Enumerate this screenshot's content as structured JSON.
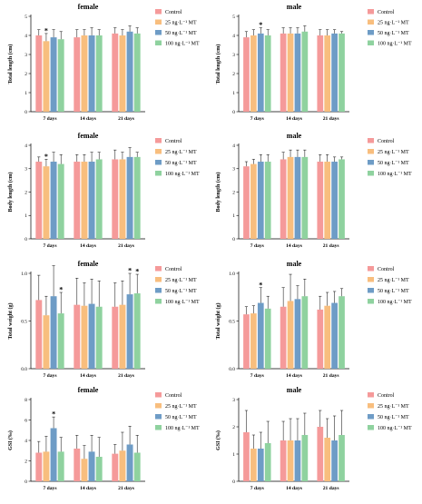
{
  "colors": {
    "Control": "#F59A9A",
    "25 ng·L⁻¹ MT": "#F8BE7E",
    "50 ng·L⁻¹ MT": "#6E9CC6",
    "100 ng·L⁻¹ MT": "#8FD29F",
    "axis": "#000000",
    "error_bar": "#000000"
  },
  "legend_labels": [
    "Control",
    "25 ng·L⁻¹ MT",
    "50 ng·L⁻¹ MT",
    "100 ng·L⁻¹ MT"
  ],
  "chart_data": [
    {
      "type": "bar",
      "title": "female",
      "ylabel": "Total length (cm)",
      "categories": [
        "7 days",
        "14 days",
        "21 days"
      ],
      "ylim": [
        0,
        5
      ],
      "yticks": [
        0,
        1,
        2,
        3,
        4,
        5
      ],
      "series": [
        {
          "name": "Control",
          "values": [
            4.0,
            3.9,
            4.1
          ],
          "errors": [
            0.3,
            0.4,
            0.3
          ]
        },
        {
          "name": "25 ng·L⁻¹ MT",
          "values": [
            3.7,
            4.0,
            4.0
          ],
          "errors": [
            0.4,
            0.3,
            0.3
          ]
        },
        {
          "name": "50 ng·L⁻¹ MT",
          "values": [
            3.9,
            4.0,
            4.2
          ],
          "errors": [
            0.4,
            0.4,
            0.3
          ]
        },
        {
          "name": "100 ng·L⁻¹ MT",
          "values": [
            3.8,
            4.0,
            4.1
          ],
          "errors": [
            0.4,
            0.3,
            0.3
          ]
        }
      ],
      "significance": [
        {
          "category": "7 days",
          "series": "25 ng·L⁻¹ MT",
          "label": "*"
        }
      ],
      "grid": false,
      "legend": "right"
    },
    {
      "type": "bar",
      "title": "male",
      "ylabel": "Total length (cm)",
      "categories": [
        "7 days",
        "14 days",
        "21 days"
      ],
      "ylim": [
        0,
        5
      ],
      "yticks": [
        0,
        1,
        2,
        3,
        4,
        5
      ],
      "series": [
        {
          "name": "Control",
          "values": [
            3.9,
            4.1,
            4.0
          ],
          "errors": [
            0.3,
            0.3,
            0.3
          ]
        },
        {
          "name": "25 ng·L⁻¹ MT",
          "values": [
            4.0,
            4.1,
            4.0
          ],
          "errors": [
            0.3,
            0.3,
            0.3
          ]
        },
        {
          "name": "50 ng·L⁻¹ MT",
          "values": [
            4.1,
            4.1,
            4.1
          ],
          "errors": [
            0.3,
            0.3,
            0.2
          ]
        },
        {
          "name": "100 ng·L⁻¹ MT",
          "values": [
            4.0,
            4.2,
            4.1
          ],
          "errors": [
            0.3,
            0.3,
            0.1
          ]
        }
      ],
      "significance": [
        {
          "category": "7 days",
          "series": "50 ng·L⁻¹ MT",
          "label": "*"
        }
      ],
      "grid": false,
      "legend": "right"
    },
    {
      "type": "bar",
      "title": "female",
      "ylabel": "Body length (cm)",
      "categories": [
        "7 days",
        "14 days",
        "21 days"
      ],
      "ylim": [
        0,
        4
      ],
      "yticks": [
        0,
        1,
        2,
        3,
        4
      ],
      "series": [
        {
          "name": "Control",
          "values": [
            3.3,
            3.3,
            3.4
          ],
          "errors": [
            0.2,
            0.3,
            0.4
          ]
        },
        {
          "name": "25 ng·L⁻¹ MT",
          "values": [
            3.1,
            3.3,
            3.4
          ],
          "errors": [
            0.3,
            0.3,
            0.3
          ]
        },
        {
          "name": "50 ng·L⁻¹ MT",
          "values": [
            3.3,
            3.3,
            3.5
          ],
          "errors": [
            0.4,
            0.4,
            0.4
          ]
        },
        {
          "name": "100 ng·L⁻¹ MT",
          "values": [
            3.2,
            3.4,
            3.5
          ],
          "errors": [
            0.4,
            0.3,
            0.2
          ]
        }
      ],
      "significance": [
        {
          "category": "7 days",
          "series": "25 ng·L⁻¹ MT",
          "label": "*"
        }
      ],
      "grid": false,
      "legend": "right"
    },
    {
      "type": "bar",
      "title": "male",
      "ylabel": "Body length (cm)",
      "categories": [
        "7 days",
        "14 days",
        "21 days"
      ],
      "ylim": [
        0,
        4
      ],
      "yticks": [
        0,
        1,
        2,
        3,
        4
      ],
      "series": [
        {
          "name": "Control",
          "values": [
            3.1,
            3.4,
            3.3
          ],
          "errors": [
            0.2,
            0.3,
            0.3
          ]
        },
        {
          "name": "25 ng·L⁻¹ MT",
          "values": [
            3.2,
            3.5,
            3.3
          ],
          "errors": [
            0.2,
            0.3,
            0.3
          ]
        },
        {
          "name": "50 ng·L⁻¹ MT",
          "values": [
            3.3,
            3.5,
            3.3
          ],
          "errors": [
            0.3,
            0.3,
            0.2
          ]
        },
        {
          "name": "100 ng·L⁻¹ MT",
          "values": [
            3.3,
            3.5,
            3.4
          ],
          "errors": [
            0.3,
            0.3,
            0.1
          ]
        }
      ],
      "significance": [],
      "grid": false,
      "legend": "right"
    },
    {
      "type": "bar",
      "title": "female",
      "ylabel": "Total weight (g)",
      "categories": [
        "7 days",
        "14 days",
        "21 days"
      ],
      "ylim": [
        0,
        1.0
      ],
      "yticks": [
        0.0,
        0.5,
        1.0
      ],
      "series": [
        {
          "name": "Control",
          "values": [
            0.72,
            0.67,
            0.65
          ],
          "errors": [
            0.26,
            0.28,
            0.25
          ]
        },
        {
          "name": "25 ng·L⁻¹ MT",
          "values": [
            0.56,
            0.66,
            0.67
          ],
          "errors": [
            0.2,
            0.24,
            0.25
          ]
        },
        {
          "name": "50 ng·L⁻¹ MT",
          "values": [
            0.76,
            0.68,
            0.78
          ],
          "errors": [
            0.38,
            0.26,
            0.22
          ]
        },
        {
          "name": "100 ng·L⁻¹ MT",
          "values": [
            0.58,
            0.65,
            0.79
          ],
          "errors": [
            0.22,
            0.27,
            0.2
          ]
        }
      ],
      "significance": [
        {
          "category": "7 days",
          "series": "100 ng·L⁻¹ MT",
          "label": "*"
        },
        {
          "category": "21 days",
          "series": "50 ng·L⁻¹ MT",
          "label": "*"
        },
        {
          "category": "21 days",
          "series": "100 ng·L⁻¹ MT",
          "label": "*"
        }
      ],
      "grid": false,
      "legend": "right"
    },
    {
      "type": "bar",
      "title": "male",
      "ylabel": "Total weight (g)",
      "categories": [
        "7 days",
        "14 days",
        "21 days"
      ],
      "ylim": [
        0,
        1.0
      ],
      "yticks": [
        0.0,
        0.5,
        1.0
      ],
      "series": [
        {
          "name": "Control",
          "values": [
            0.57,
            0.65,
            0.62
          ],
          "errors": [
            0.08,
            0.2,
            0.14
          ]
        },
        {
          "name": "25 ng·L⁻¹ MT",
          "values": [
            0.58,
            0.71,
            0.66
          ],
          "errors": [
            0.08,
            0.28,
            0.14
          ]
        },
        {
          "name": "50 ng·L⁻¹ MT",
          "values": [
            0.69,
            0.73,
            0.69
          ],
          "errors": [
            0.16,
            0.14,
            0.12
          ]
        },
        {
          "name": "100 ng·L⁻¹ MT",
          "values": [
            0.63,
            0.76,
            0.76
          ],
          "errors": [
            0.13,
            0.18,
            0.08
          ]
        }
      ],
      "significance": [
        {
          "category": "7 days",
          "series": "50 ng·L⁻¹ MT",
          "label": "*"
        }
      ],
      "grid": false,
      "legend": "right"
    },
    {
      "type": "bar",
      "title": "female",
      "ylabel": "GSI (‰)",
      "categories": [
        "7 days",
        "14 days",
        "21 days"
      ],
      "ylim": [
        0,
        8
      ],
      "yticks": [
        0,
        2,
        4,
        6,
        8
      ],
      "series": [
        {
          "name": "Control",
          "values": [
            2.8,
            3.2,
            2.7
          ],
          "errors": [
            1.1,
            1.3,
            0.9
          ]
        },
        {
          "name": "25 ng·L⁻¹ MT",
          "values": [
            2.9,
            2.2,
            3.0
          ],
          "errors": [
            1.5,
            1.3,
            1.8
          ]
        },
        {
          "name": "50 ng·L⁻¹ MT",
          "values": [
            5.2,
            2.9,
            3.6
          ],
          "errors": [
            1.1,
            1.6,
            1.8
          ]
        },
        {
          "name": "100 ng·L⁻¹ MT",
          "values": [
            2.9,
            2.4,
            2.8
          ],
          "errors": [
            1.4,
            1.9,
            1.7
          ]
        }
      ],
      "significance": [
        {
          "category": "7 days",
          "series": "50 ng·L⁻¹ MT",
          "label": "*"
        }
      ],
      "grid": false,
      "legend": "right"
    },
    {
      "type": "bar",
      "title": "male",
      "ylabel": "GSI (‰)",
      "categories": [
        "7 days",
        "14 days",
        "21 days"
      ],
      "ylim": [
        0,
        3
      ],
      "yticks": [
        0,
        1,
        2,
        3
      ],
      "series": [
        {
          "name": "Control",
          "values": [
            1.8,
            1.5,
            2.0
          ],
          "errors": [
            0.8,
            0.7,
            0.6
          ]
        },
        {
          "name": "25 ng·L⁻¹ MT",
          "values": [
            1.2,
            1.5,
            1.6
          ],
          "errors": [
            0.5,
            0.8,
            0.7
          ]
        },
        {
          "name": "50 ng·L⁻¹ MT",
          "values": [
            1.2,
            1.5,
            1.5
          ],
          "errors": [
            0.6,
            0.8,
            0.9
          ]
        },
        {
          "name": "100 ng·L⁻¹ MT",
          "values": [
            1.4,
            1.7,
            1.7
          ],
          "errors": [
            0.8,
            0.8,
            0.9
          ]
        }
      ],
      "significance": [],
      "grid": false,
      "legend": "right"
    }
  ]
}
